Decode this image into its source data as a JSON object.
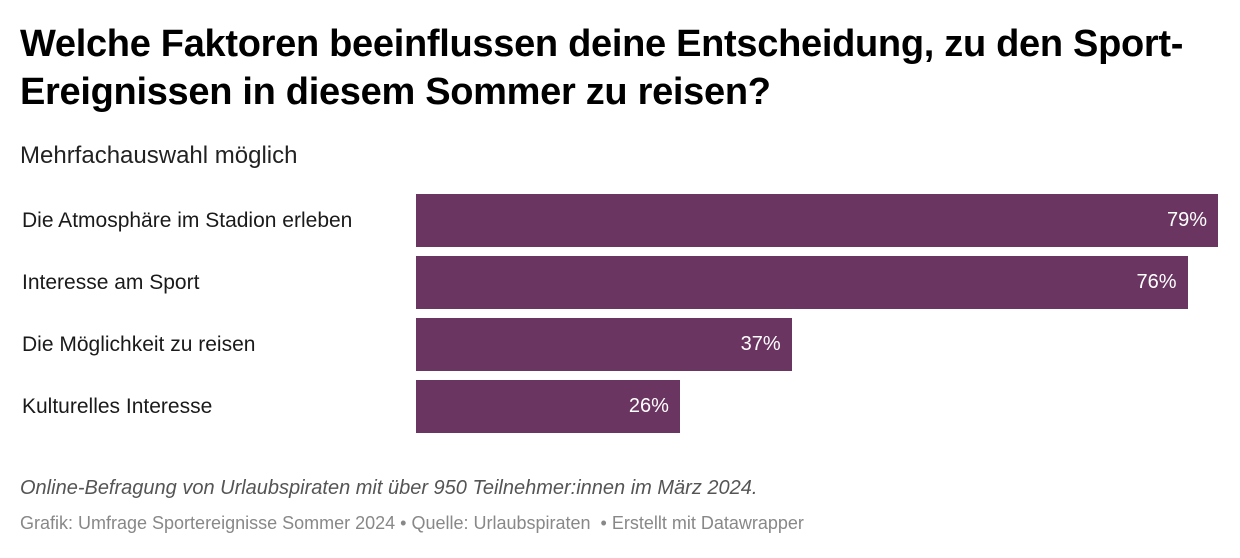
{
  "header": {
    "title": "Welche Faktoren beeinflussen deine Entscheidung, zu den Sport-Ereignissen in diesem Sommer zu reisen?",
    "subtitle": "Mehrfachauswahl möglich"
  },
  "chart_data": {
    "type": "bar",
    "orientation": "horizontal",
    "title": "Welche Faktoren beeinflussen deine Entscheidung, zu den Sport-Ereignissen in diesem Sommer zu reisen?",
    "subtitle": "Mehrfachauswahl möglich",
    "categories": [
      "Die Atmosphäre im Stadion erleben",
      "Interesse am Sport",
      "Die Möglichkeit zu reisen",
      "Kulturelles Interesse"
    ],
    "values": [
      79,
      76,
      37,
      26
    ],
    "value_labels": [
      "79%",
      "76%",
      "37%",
      "26%"
    ],
    "unit": "%",
    "xlabel": "",
    "ylabel": "",
    "xlim": [
      0,
      79
    ],
    "grid": false,
    "legend": "none",
    "bar_color": "#6a3561",
    "label_color": "#ffffff"
  },
  "footer": {
    "notes": "Online-Befragung von Urlaubspiraten mit über 950 Teilnehmer:innen im März 2024.",
    "byline": "Grafik: Umfrage Sportereignisse Sommer 2024 • Quelle: Urlaubspiraten  • Erstellt mit Datawrapper"
  }
}
